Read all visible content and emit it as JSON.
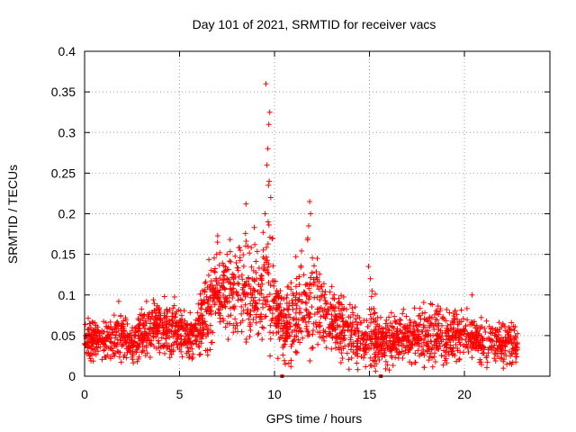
{
  "chart_data": {
    "type": "scatter",
    "title": "Day 101 of 2021, SRMTID for receiver vacs",
    "xlabel": "GPS time / hours",
    "ylabel": "SRMTID / TECUs",
    "xlim": [
      0,
      24.5
    ],
    "ylim": [
      0,
      0.4
    ],
    "xticks": [
      0,
      5,
      10,
      15,
      20
    ],
    "yticks": [
      0,
      0.05,
      0.1,
      0.15,
      0.2,
      0.25,
      0.3,
      0.35,
      0.4
    ],
    "xtick_labels": [
      "0",
      "5",
      "10",
      "15",
      "20"
    ],
    "ytick_labels": [
      "0",
      "0.05",
      "0.1",
      "0.15",
      "0.2",
      "0.25",
      "0.3",
      "0.35",
      "0.4"
    ],
    "grid": true,
    "marker": "plus",
    "color": "#ff0000",
    "x_extent_hours": [
      0,
      22.8
    ],
    "profile": {
      "description": "dense cloud of points; estimated median and spread by time",
      "times": [
        0,
        1,
        2,
        2.5,
        3,
        4,
        5,
        5.7,
        6.3,
        7,
        8,
        8.7,
        9.2,
        9.6,
        10.1,
        10.6,
        11,
        11.6,
        12.2,
        13,
        14,
        14.7,
        15.2,
        15.5,
        16,
        17,
        18,
        19,
        20,
        21,
        22,
        22.8
      ],
      "median": [
        0.045,
        0.045,
        0.05,
        0.04,
        0.055,
        0.06,
        0.055,
        0.045,
        0.075,
        0.1,
        0.11,
        0.1,
        0.095,
        0.12,
        0.08,
        0.055,
        0.075,
        0.085,
        0.09,
        0.065,
        0.055,
        0.035,
        0.055,
        0.04,
        0.045,
        0.045,
        0.05,
        0.05,
        0.05,
        0.04,
        0.04,
        0.04
      ],
      "spread": [
        0.012,
        0.012,
        0.015,
        0.012,
        0.015,
        0.015,
        0.015,
        0.015,
        0.02,
        0.025,
        0.03,
        0.03,
        0.03,
        0.035,
        0.02,
        0.02,
        0.03,
        0.03,
        0.025,
        0.02,
        0.02,
        0.015,
        0.025,
        0.012,
        0.015,
        0.015,
        0.018,
        0.015,
        0.015,
        0.012,
        0.012,
        0.012
      ]
    },
    "peaks": [
      {
        "x": 9.55,
        "y": 0.36
      },
      {
        "x": 9.75,
        "y": 0.325
      },
      {
        "x": 9.7,
        "y": 0.31
      },
      {
        "x": 9.65,
        "y": 0.28
      },
      {
        "x": 9.6,
        "y": 0.26
      },
      {
        "x": 9.72,
        "y": 0.24
      },
      {
        "x": 9.68,
        "y": 0.235
      },
      {
        "x": 9.8,
        "y": 0.22
      },
      {
        "x": 8.5,
        "y": 0.212
      },
      {
        "x": 9.5,
        "y": 0.2
      },
      {
        "x": 11.85,
        "y": 0.215
      },
      {
        "x": 11.9,
        "y": 0.2
      },
      {
        "x": 11.8,
        "y": 0.185
      },
      {
        "x": 11.75,
        "y": 0.17
      },
      {
        "x": 7,
        "y": 0.165
      },
      {
        "x": 8.6,
        "y": 0.16
      },
      {
        "x": 9.9,
        "y": 0.17
      },
      {
        "x": 12.25,
        "y": 0.145
      },
      {
        "x": 14.95,
        "y": 0.135
      },
      {
        "x": 15.05,
        "y": 0.12
      },
      {
        "x": 20.4,
        "y": 0.1
      },
      {
        "x": 7.5,
        "y": 0.15
      },
      {
        "x": 8.2,
        "y": 0.155
      }
    ],
    "zero_points": [
      {
        "x": 10.4,
        "y": 0
      },
      {
        "x": 15.6,
        "y": 0
      }
    ]
  }
}
